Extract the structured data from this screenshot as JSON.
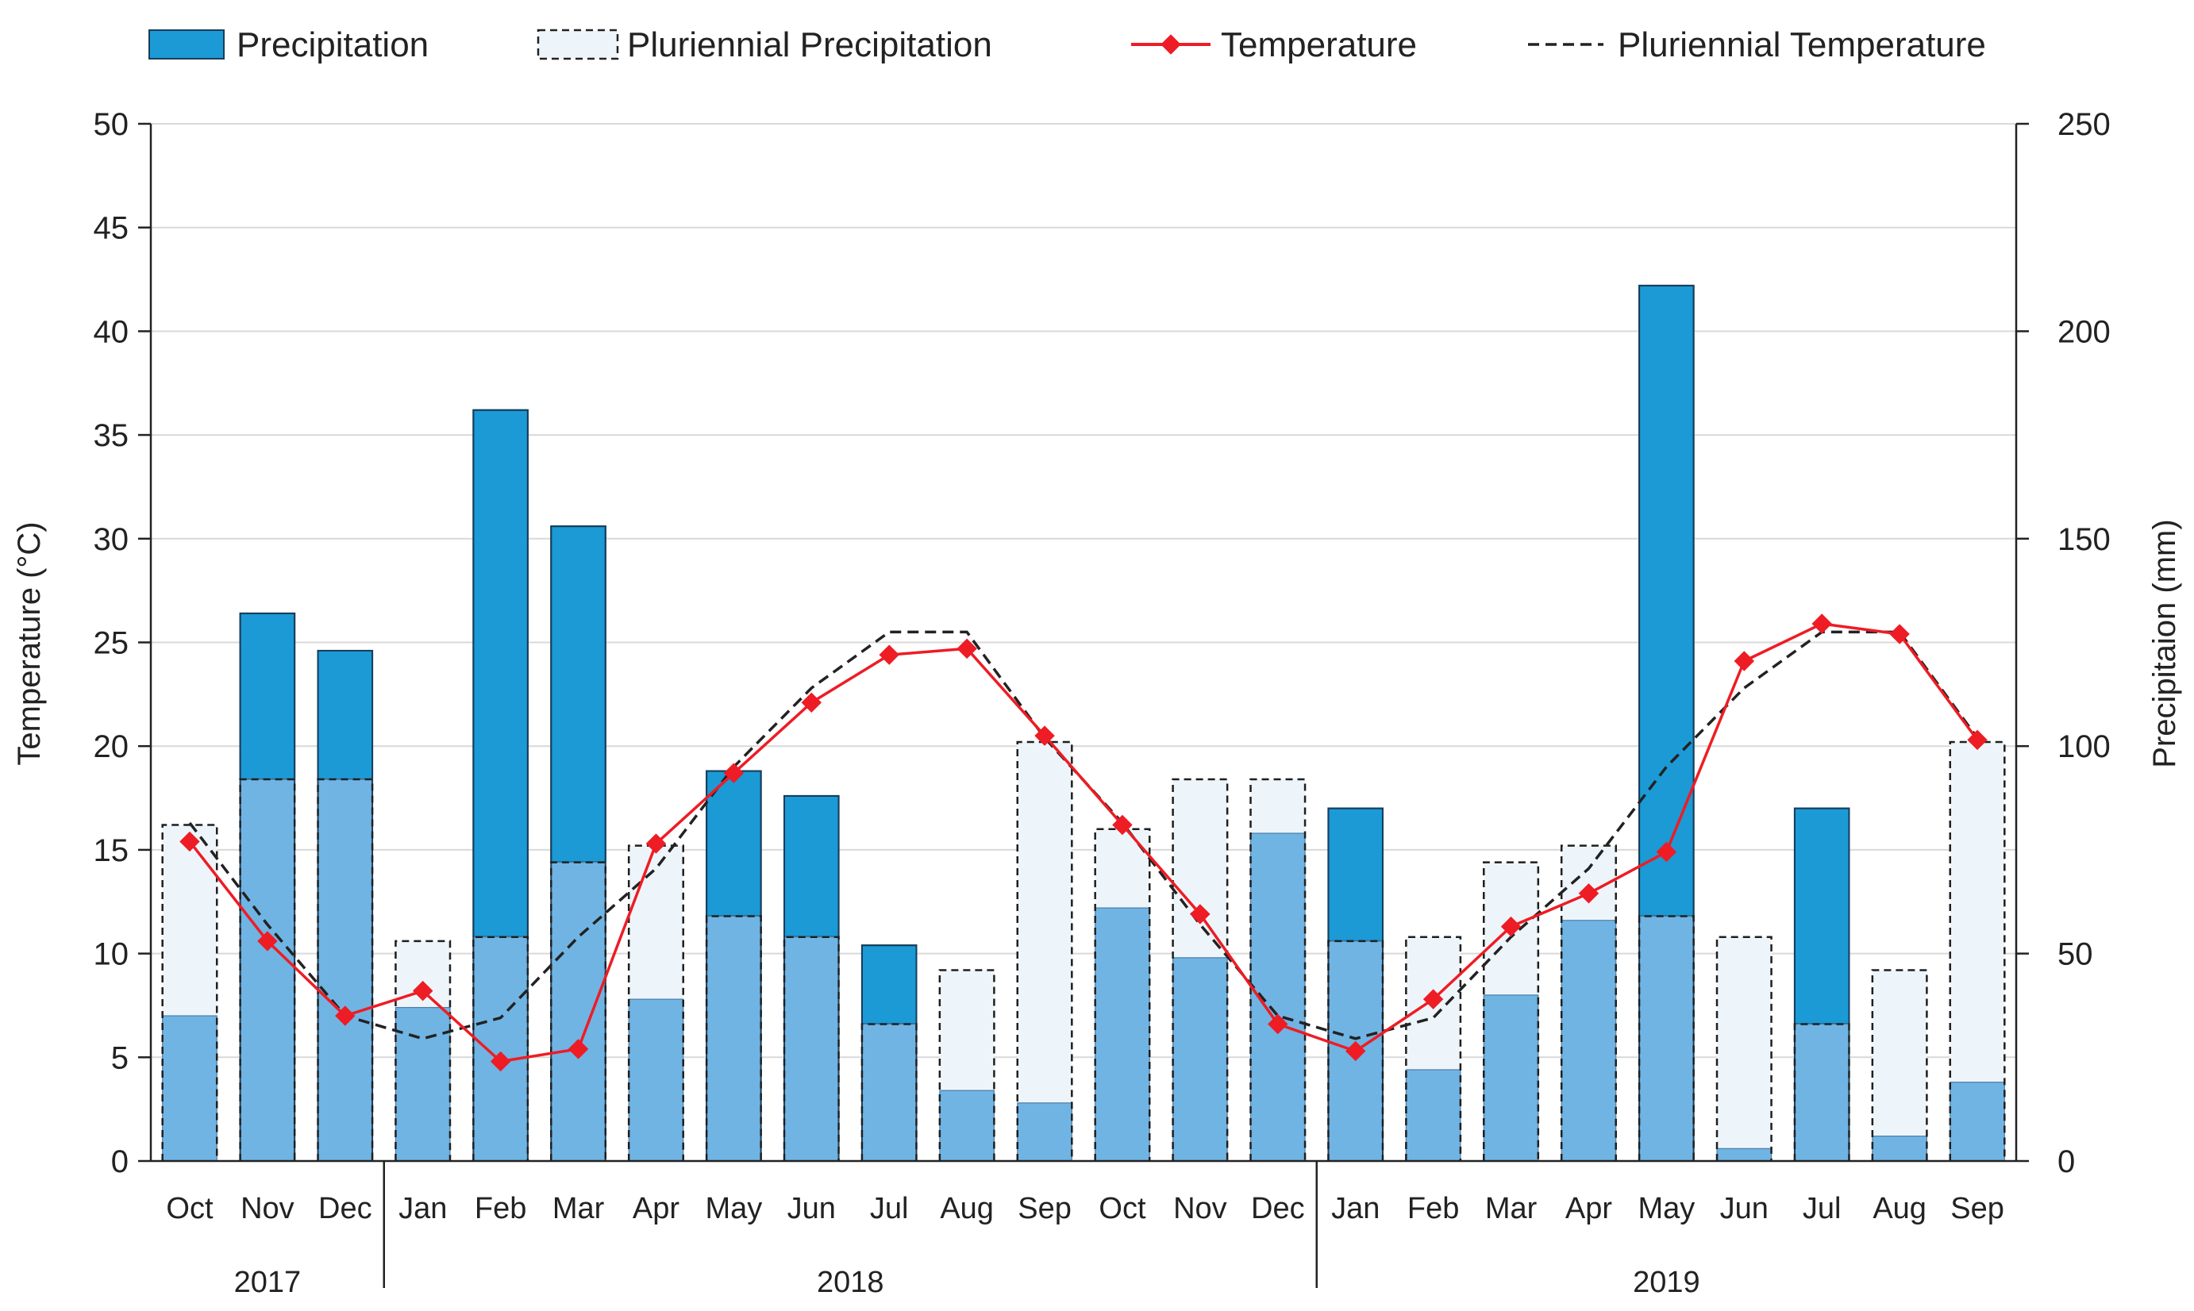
{
  "chart_data": {
    "type": "bar",
    "title": "",
    "legend": {
      "placement": "top",
      "entries": [
        "Precipitation",
        "Pluriennial Precipitation",
        "Temperature",
        "Pluriennial Temperature"
      ]
    },
    "categories": [
      "Oct",
      "Nov",
      "Dec",
      "Jan",
      "Feb",
      "Mar",
      "Apr",
      "May",
      "Jun",
      "Jul",
      "Aug",
      "Sep",
      "Oct",
      "Nov",
      "Dec",
      "Jan",
      "Feb",
      "Mar",
      "Apr",
      "May",
      "Jun",
      "Jul",
      "Aug",
      "Sep"
    ],
    "year_groups": [
      {
        "label": "2017",
        "start": 0,
        "end": 2
      },
      {
        "label": "2018",
        "start": 3,
        "end": 14
      },
      {
        "label": "2019",
        "start": 15,
        "end": 23
      }
    ],
    "y_left": {
      "label": "Temperature (°C)",
      "min": 0,
      "max": 50,
      "ticks": [
        0,
        5,
        10,
        15,
        20,
        25,
        30,
        35,
        40,
        45,
        50
      ]
    },
    "y_right": {
      "label": "Precipitaion (mm)",
      "min": 0,
      "max": 250,
      "ticks": [
        0,
        50,
        100,
        150,
        200,
        250
      ]
    },
    "grid": true,
    "series": [
      {
        "name": "Precipitation",
        "type": "bar",
        "axis": "right",
        "color": "#1b9ad6",
        "values": [
          35,
          132,
          123,
          37,
          181,
          153,
          39,
          94,
          88,
          52,
          17,
          14,
          61,
          49,
          79,
          85,
          22,
          40,
          58,
          211,
          3,
          85,
          6,
          19
        ]
      },
      {
        "name": "Pluriennial Precipitation",
        "type": "bar",
        "axis": "right",
        "style": "dashed outline",
        "color": "#eef5fa",
        "values": [
          81,
          92,
          92,
          53,
          54,
          72,
          76,
          59,
          54,
          33,
          46,
          101,
          80,
          92,
          92,
          53,
          54,
          72,
          76,
          59,
          54,
          33,
          46,
          101
        ]
      },
      {
        "name": "Temperature",
        "type": "line",
        "axis": "left",
        "marker": "diamond",
        "color": "#ee1c24",
        "values": [
          15.4,
          10.6,
          7.0,
          8.2,
          4.8,
          5.4,
          15.3,
          18.7,
          22.1,
          24.4,
          24.7,
          20.5,
          16.2,
          11.9,
          6.6,
          5.3,
          7.8,
          11.3,
          12.9,
          14.9,
          24.1,
          25.9,
          25.4,
          20.3
        ]
      },
      {
        "name": "Pluriennial Temperature",
        "type": "line",
        "axis": "left",
        "style": "dashed",
        "color": "#222222",
        "values": [
          16.3,
          11.4,
          7.0,
          5.9,
          6.9,
          10.8,
          14.1,
          19.0,
          22.8,
          25.5,
          25.5,
          20.4,
          16.3,
          11.4,
          7.0,
          5.9,
          6.9,
          10.8,
          14.1,
          19.0,
          22.8,
          25.5,
          25.5,
          20.4
        ]
      }
    ]
  }
}
